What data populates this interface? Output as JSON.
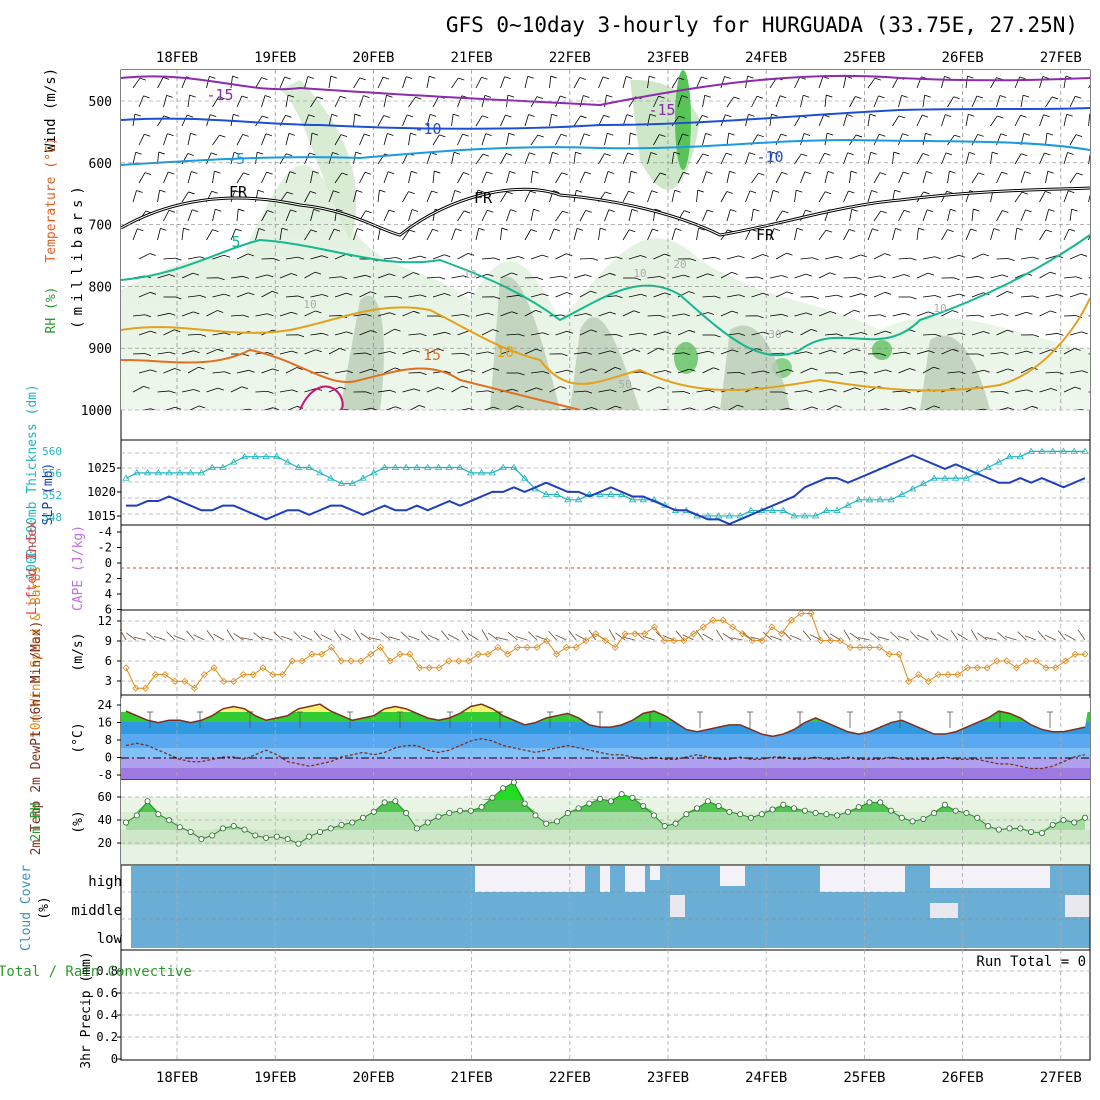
{
  "title": "GFS 0~10day 3-hourly for HURGUADA (33.75E, 27.25N)",
  "dates": [
    "18FEB",
    "19FEB",
    "20FEB",
    "21FEB",
    "22FEB",
    "23FEB",
    "24FEB",
    "25FEB",
    "26FEB",
    "27FEB"
  ],
  "colors": {
    "grid": "#aaaaaa",
    "slp": "#1f3fbf",
    "thickness": "#22b5c0",
    "wind10": "#e08a1a",
    "rh_green": "#33cc33",
    "cloud": "#6aaed6",
    "lifted_index": "#e04040",
    "cape": "#c070e0"
  },
  "panels": {
    "upper": {
      "ylabel_rh": "RH (%)",
      "ylabel_temp": "Temperature (°C)",
      "ylabel_wind": "Wind (m/s)",
      "ylabel_mb": "(millibars)",
      "pressure_ticks": [
        "500",
        "600",
        "700",
        "800",
        "900",
        "1000"
      ],
      "contour_labels": [
        "-15",
        "-15",
        "-10",
        "-10",
        "-5",
        "FR",
        "FR",
        "FR",
        "5",
        "10",
        "10",
        "10",
        "10",
        "20",
        "30",
        "50",
        "15",
        "10"
      ]
    },
    "slp": {
      "ylabel_thk": "1000-500mb Thickness (dm)",
      "ylabel_slp": "SLP (mb)",
      "thk_ticks": [
        "560",
        "556",
        "552",
        "548"
      ],
      "slp_ticks": [
        "1025",
        "1020",
        "1015"
      ]
    },
    "cape": {
      "ylabel_li": "Lifted Index",
      "ylabel_cape": "CAPE (J/kg)",
      "ticks": [
        "-4",
        "-2",
        "0",
        "2",
        "4",
        "6"
      ]
    },
    "wind10": {
      "ylabel": "10m Wind Speed & Barbs",
      "unit": "(m/s)",
      "ticks": [
        "12",
        "9",
        "6",
        "3"
      ]
    },
    "temp2m": {
      "ylabel": "2m Temp 2m DewPt (6hr Min/Max)",
      "unit": "(°C)",
      "ticks": [
        "24",
        "16",
        "8",
        "0",
        "-8"
      ]
    },
    "rh2m": {
      "ylabel": "2m RH",
      "unit": "(%)",
      "ticks": [
        "60",
        "40",
        "20"
      ]
    },
    "cloud": {
      "ylabel": "Cloud Cover",
      "unit": "(%)",
      "levels": [
        "high",
        "middle",
        "low"
      ]
    },
    "precip": {
      "ylabel_left": "Total / Rain Convective",
      "ylabel": "3hr Precip (mm)",
      "ticks": [
        "0.8",
        "0.6",
        "0.4",
        "0.2",
        "0"
      ],
      "run_total": "Run Total = 0"
    }
  },
  "chart_data": [
    {
      "type": "line",
      "name": "SLP",
      "ylim": [
        1012,
        1029
      ],
      "y": [
        1016,
        1016,
        1017,
        1017,
        1018,
        1017,
        1016,
        1015,
        1015,
        1016,
        1016,
        1015,
        1014,
        1013,
        1014,
        1015,
        1015,
        1014,
        1015,
        1016,
        1016,
        1015,
        1014,
        1015,
        1016,
        1015,
        1015,
        1016,
        1015,
        1016,
        1017,
        1016,
        1017,
        1018,
        1019,
        1019,
        1020,
        1019,
        1020,
        1021,
        1020,
        1019,
        1019,
        1018,
        1019,
        1020,
        1019,
        1018,
        1018,
        1017,
        1016,
        1015,
        1015,
        1014,
        1013,
        1013,
        1012,
        1013,
        1014,
        1015,
        1016,
        1017,
        1018,
        1020,
        1021,
        1022,
        1022,
        1021,
        1022,
        1023,
        1024,
        1025,
        1026,
        1027,
        1026,
        1025,
        1024,
        1025,
        1024,
        1023,
        1022,
        1021,
        1021,
        1022,
        1021,
        1022,
        1021,
        1020,
        1021,
        1022
      ]
    },
    {
      "type": "line",
      "name": "Thickness",
      "ylim": [
        547.5,
        562
      ],
      "y": [
        556,
        557,
        557,
        557,
        557,
        557,
        557,
        557,
        558,
        558,
        559,
        560,
        560,
        560,
        560,
        559,
        558,
        558,
        557,
        556,
        555,
        555,
        556,
        557,
        558,
        558,
        558,
        558,
        558,
        558,
        558,
        558,
        557,
        557,
        557,
        558,
        558,
        556,
        554,
        553,
        553,
        552,
        552,
        553,
        553,
        553,
        553,
        552,
        552,
        552,
        551,
        550,
        550,
        549,
        549,
        549,
        549,
        549,
        550,
        550,
        550,
        550,
        549,
        549,
        549,
        550,
        550,
        551,
        552,
        552,
        552,
        552,
        553,
        554,
        555,
        556,
        556,
        556,
        556,
        557,
        558,
        559,
        560,
        560,
        561,
        561,
        561,
        561,
        561,
        561
      ]
    },
    {
      "type": "line",
      "name": "10m Wind Speed",
      "ylim": [
        1,
        13.5
      ],
      "y": [
        5,
        2,
        2,
        4,
        4,
        3,
        3,
        2,
        4,
        5,
        3,
        3,
        4,
        4,
        5,
        4,
        4,
        6,
        6,
        7,
        7,
        8,
        6,
        6,
        6,
        7,
        8,
        6,
        7,
        7,
        5,
        5,
        5,
        6,
        6,
        6,
        7,
        7,
        8,
        7,
        8,
        8,
        8,
        9,
        7,
        8,
        8,
        9,
        10,
        9,
        8,
        10,
        10,
        10,
        11,
        9,
        9,
        9,
        10,
        11,
        12,
        12,
        11,
        10,
        9,
        9,
        11,
        10,
        12,
        13,
        13,
        9,
        9,
        9,
        8,
        8,
        8,
        8,
        7,
        7,
        3,
        4,
        3,
        4,
        4,
        4,
        5,
        5,
        5,
        6,
        6,
        5,
        6,
        6,
        5,
        5,
        6,
        7,
        7
      ]
    },
    {
      "type": "area",
      "name": "2m Temp",
      "ylim": [
        -10,
        27
      ],
      "y": [
        20,
        18,
        16,
        15,
        16,
        16,
        15,
        16,
        18,
        21,
        22,
        21,
        18,
        16,
        17,
        18,
        21,
        22,
        23,
        20,
        18,
        16,
        17,
        18,
        21,
        22,
        21,
        19,
        17,
        16,
        17,
        19,
        22,
        23,
        21,
        18,
        16,
        14,
        15,
        17,
        18,
        19,
        17,
        14,
        13,
        13,
        14,
        16,
        19,
        20,
        18,
        15,
        12,
        11,
        12,
        13,
        14,
        14,
        12,
        10,
        9,
        10,
        12,
        15,
        17,
        15,
        13,
        11,
        10,
        11,
        13,
        15,
        16,
        14,
        12,
        10,
        10,
        11,
        13,
        15,
        17,
        20,
        19,
        17,
        14,
        12,
        11,
        11,
        12,
        13
      ]
    },
    {
      "type": "line",
      "name": "2m DewPt",
      "ylim": [
        -10,
        27
      ],
      "y": [
        5,
        6,
        5,
        3,
        1,
        -1,
        -2,
        -2,
        -1,
        0,
        0,
        -1,
        1,
        3,
        1,
        -2,
        -3,
        -4,
        -3,
        -2,
        0,
        1,
        2,
        1,
        2,
        4,
        5,
        5,
        3,
        2,
        3,
        5,
        7,
        8,
        7,
        5,
        4,
        3,
        2,
        3,
        4,
        5,
        4,
        3,
        2,
        1,
        1,
        0,
        -1,
        0,
        -1,
        -1,
        0,
        1,
        0,
        -1,
        -1,
        0,
        -1,
        -1,
        0,
        0,
        -1,
        -1,
        0,
        -1,
        -1,
        0,
        -1,
        -1,
        -1,
        0,
        -1,
        -1,
        -1,
        -1,
        0,
        -1,
        -1,
        -1,
        -2,
        -3,
        -3,
        -4,
        -5,
        -5,
        -4,
        -2,
        0,
        1
      ]
    },
    {
      "type": "area",
      "name": "2m RH",
      "ylim": [
        0,
        72
      ],
      "y": [
        36,
        42,
        54,
        43,
        38,
        32,
        28,
        22,
        25,
        31,
        33,
        30,
        25,
        23,
        24,
        22,
        18,
        24,
        28,
        31,
        34,
        36,
        40,
        45,
        53,
        54,
        44,
        31,
        36,
        41,
        44,
        46,
        46,
        49,
        57,
        65,
        70,
        52,
        42,
        35,
        37,
        44,
        48,
        52,
        56,
        54,
        60,
        57,
        50,
        42,
        33,
        35,
        43,
        48,
        54,
        50,
        45,
        43,
        40,
        43,
        47,
        51,
        48,
        46,
        44,
        43,
        42,
        45,
        49,
        53,
        53,
        46,
        40,
        37,
        39,
        44,
        51,
        46,
        44,
        40,
        33,
        30,
        31,
        31,
        28,
        27,
        34,
        38,
        36,
        40
      ]
    },
    {
      "type": "bar",
      "name": "Precip",
      "ylim": [
        0,
        0.9
      ],
      "values": []
    }
  ]
}
